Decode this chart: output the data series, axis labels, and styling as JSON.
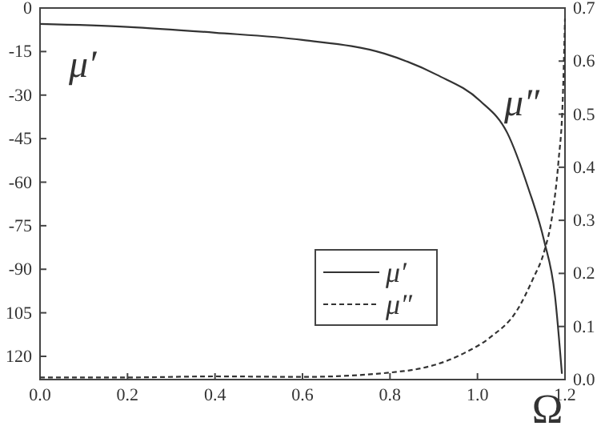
{
  "chart_data": {
    "type": "line",
    "xlabel": "Ω",
    "annotations": [
      "μ′",
      "μ″"
    ],
    "xlim": [
      0,
      1.2
    ],
    "xticks": [
      {
        "value": 0,
        "label": "0.0"
      },
      {
        "value": 0.2,
        "label": "0.2"
      },
      {
        "value": 0.4,
        "label": "0.4"
      },
      {
        "value": 0.6,
        "label": "0.6"
      },
      {
        "value": 0.8,
        "label": "0.8"
      },
      {
        "value": 1.0,
        "label": "1.0"
      },
      {
        "value": 1.2,
        "label": "1.2"
      }
    ],
    "ylim": [
      -128,
      0
    ],
    "yticks": [
      0,
      -15,
      -30,
      -45,
      -60,
      -75,
      -90,
      {
        "value": -105,
        "label": "105"
      },
      {
        "value": -120,
        "label": "120"
      }
    ],
    "y2lim": [
      0,
      0.7
    ],
    "y2ticks": [
      {
        "value": 0,
        "label": "0.0"
      },
      0.1,
      0.2,
      0.3,
      0.4,
      0.5,
      0.6,
      0.7
    ],
    "legend": "bottom right",
    "grid": false,
    "series": [
      {
        "name": "μ′",
        "color": "#333333",
        "line_style": "solid",
        "x": [
          0,
          0.2,
          0.4,
          0.6,
          0.787,
          0.907,
          1.006,
          1.068,
          1.116,
          1.152,
          1.177,
          1.193
        ],
        "values": [
          -5.5,
          -6.5,
          -8.5,
          -11,
          -15.7,
          -23,
          -32,
          -43,
          -62,
          -80,
          -99,
          -126
        ]
      },
      {
        "name": "μ″",
        "color": "#333333",
        "line_style": "dashed",
        "axis": "y2",
        "x": [
          0,
          0.2,
          0.4,
          0.6,
          0.832,
          0.97,
          1.03,
          1.09,
          1.127,
          1.152,
          1.171,
          1.185,
          1.195,
          1.2
        ],
        "values": [
          0.004,
          0.004,
          0.006,
          0.005,
          0.016,
          0.05,
          0.08,
          0.13,
          0.19,
          0.24,
          0.31,
          0.41,
          0.53,
          0.68
        ]
      }
    ]
  }
}
